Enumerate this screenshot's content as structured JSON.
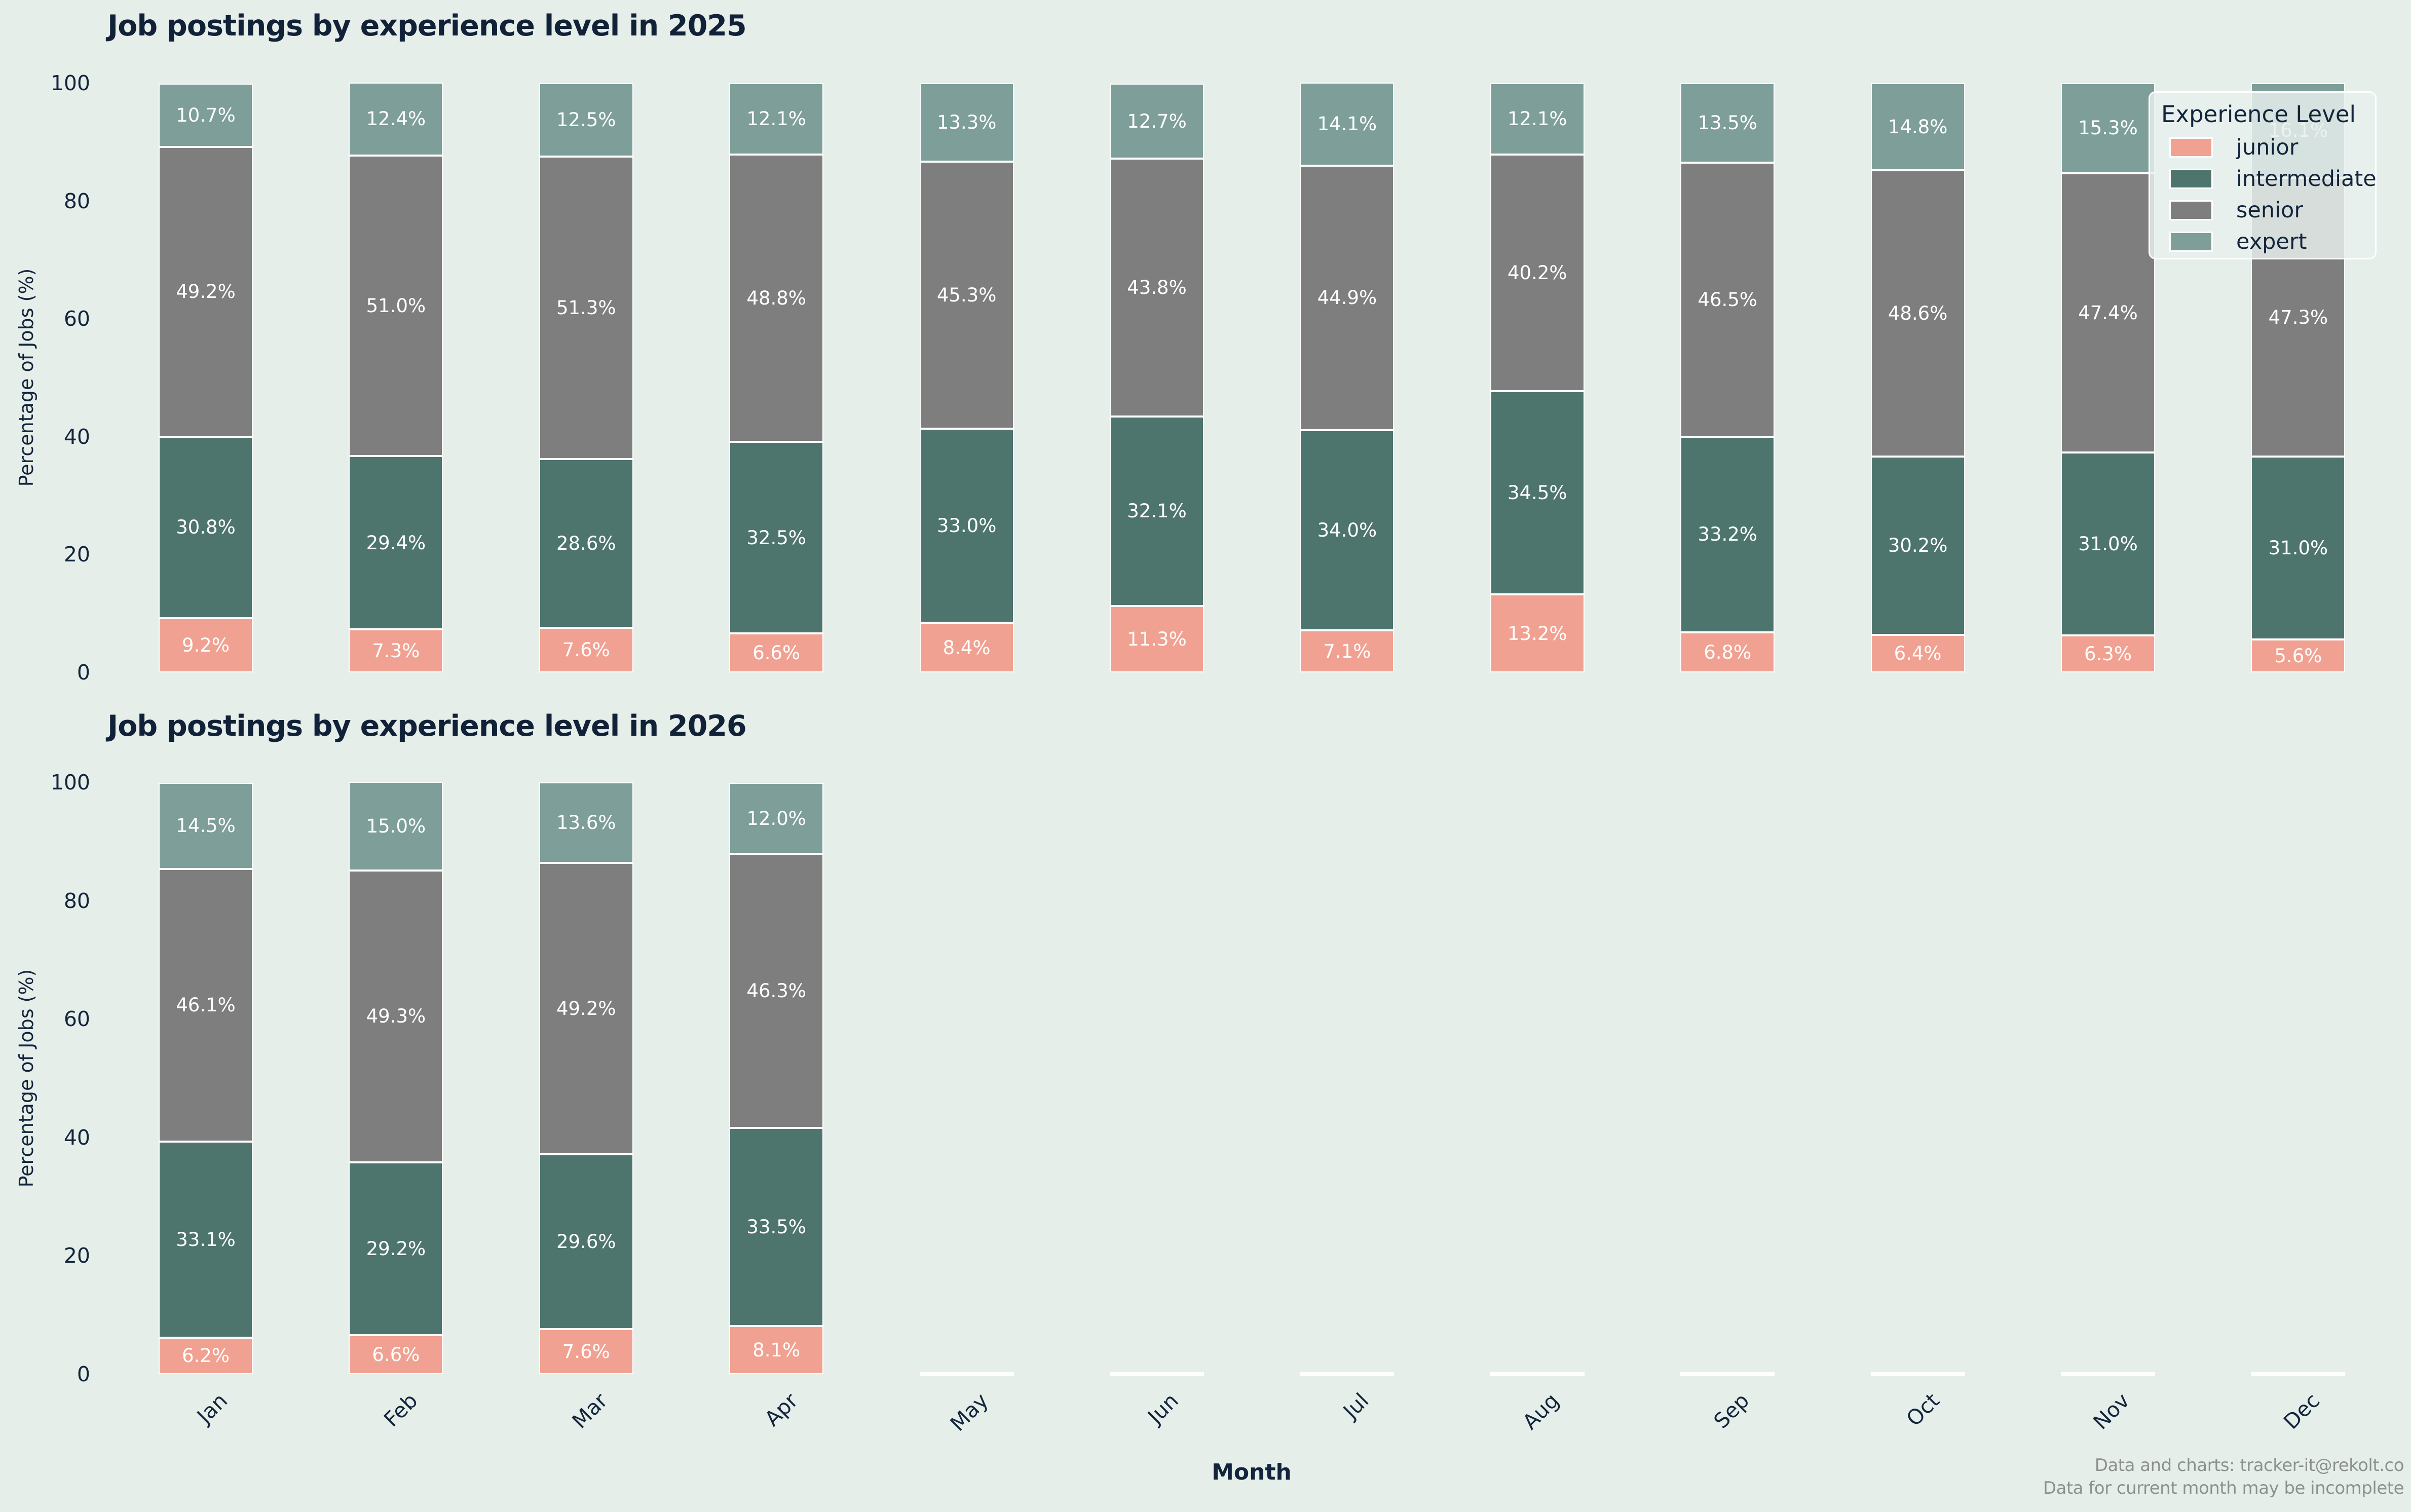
{
  "chart_data": [
    {
      "type": "bar",
      "stacked": true,
      "title": "Job postings by experience level in 2025",
      "xlabel": "Month",
      "ylabel": "Percentage of Jobs (%)",
      "ylim": [
        0,
        100
      ],
      "yticks": [
        0,
        20,
        40,
        60,
        80,
        100
      ],
      "grid": false,
      "legend_position": "upper right",
      "bar_label_format": "one-decimal-percent",
      "categories": [
        "Jan",
        "Feb",
        "Mar",
        "Apr",
        "May",
        "Jun",
        "Jul",
        "Aug",
        "Sep",
        "Oct",
        "Nov",
        "Dec"
      ],
      "series": [
        {
          "name": "junior",
          "values": [
            9.2,
            7.3,
            7.6,
            6.6,
            8.4,
            11.3,
            7.1,
            13.2,
            6.8,
            6.4,
            6.3,
            5.6
          ]
        },
        {
          "name": "intermediate",
          "values": [
            30.8,
            29.4,
            28.6,
            32.5,
            33.0,
            32.1,
            34.0,
            34.5,
            33.2,
            30.2,
            31.0,
            31.0
          ]
        },
        {
          "name": "senior",
          "values": [
            49.2,
            51.0,
            51.3,
            48.8,
            45.3,
            43.8,
            44.9,
            40.2,
            46.5,
            48.6,
            47.4,
            47.3
          ]
        },
        {
          "name": "expert",
          "values": [
            10.7,
            12.4,
            12.5,
            12.1,
            13.3,
            12.7,
            14.1,
            12.1,
            13.5,
            14.8,
            15.3,
            16.1
          ]
        }
      ]
    },
    {
      "type": "bar",
      "stacked": true,
      "title": "Job postings by experience level in 2026",
      "xlabel": "Month",
      "ylabel": "Percentage of Jobs (%)",
      "ylim": [
        0,
        100
      ],
      "yticks": [
        0,
        20,
        40,
        60,
        80,
        100
      ],
      "grid": false,
      "bar_label_format": "one-decimal-percent",
      "categories": [
        "Jan",
        "Feb",
        "Mar",
        "Apr",
        "May",
        "Jun",
        "Jul",
        "Aug",
        "Sep",
        "Oct",
        "Nov",
        "Dec"
      ],
      "series": [
        {
          "name": "junior",
          "values": [
            6.2,
            6.6,
            7.6,
            8.1,
            null,
            null,
            null,
            null,
            null,
            null,
            null,
            null
          ]
        },
        {
          "name": "intermediate",
          "values": [
            33.1,
            29.2,
            29.6,
            33.5,
            null,
            null,
            null,
            null,
            null,
            null,
            null,
            null
          ]
        },
        {
          "name": "senior",
          "values": [
            46.1,
            49.3,
            49.2,
            46.3,
            null,
            null,
            null,
            null,
            null,
            null,
            null,
            null
          ]
        },
        {
          "name": "expert",
          "values": [
            14.5,
            15.0,
            13.6,
            12.0,
            null,
            null,
            null,
            null,
            null,
            null,
            null,
            null
          ]
        }
      ]
    }
  ],
  "legend": {
    "title": "Experience Level",
    "items": [
      {
        "label": "junior",
        "color": "#f1a191"
      },
      {
        "label": "intermediate",
        "color": "#4d756e"
      },
      {
        "label": "senior",
        "color": "#7e7e7e"
      },
      {
        "label": "expert",
        "color": "#7d9e99"
      }
    ]
  },
  "footer": {
    "line1": "Data and charts: tracker-it@rekolt.co",
    "line2": "Data for current month may be incomplete"
  },
  "colors": {
    "junior": "#f1a191",
    "intermediate": "#4d756e",
    "senior": "#7e7e7e",
    "expert": "#7d9e99",
    "background": "#e6eeea",
    "title_text": "#112238",
    "tick_text": "#13253c",
    "footer_text": "#8c918e",
    "bar_edge": "#ffffff"
  }
}
